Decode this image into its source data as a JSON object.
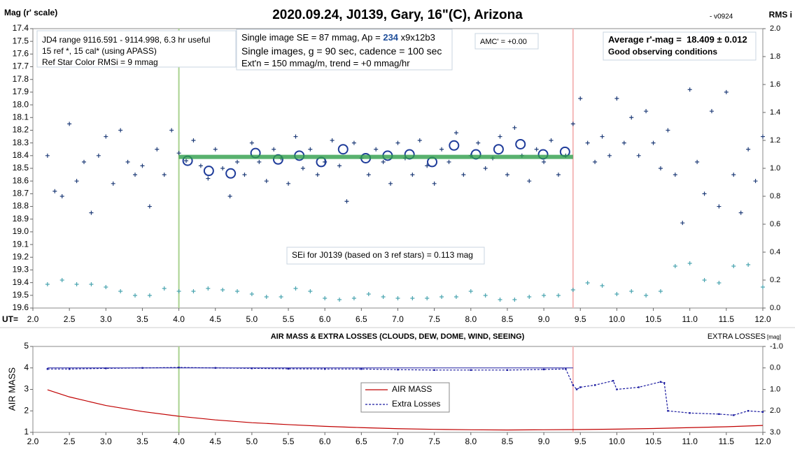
{
  "chart_data": [
    {
      "type": "scatter",
      "title": "2020.09.24, J0139, Gary, 16\"(C), Arizona",
      "subtitle": "- v0924",
      "y_label": "Mag (r' scale)",
      "y2_label": "RMS i",
      "x_label": "UT=",
      "xlim": [
        2.0,
        12.0
      ],
      "xticks": [
        {
          "value": 2,
          "label": "2.0"
        },
        2.5,
        {
          "value": 3,
          "label": "3.0"
        },
        3.5,
        {
          "value": 4,
          "label": "4.0"
        },
        4.5,
        {
          "value": 5,
          "label": "5.0"
        },
        5.5,
        {
          "value": 6,
          "label": "6.0"
        },
        6.5,
        {
          "value": 7,
          "label": "7.0"
        },
        7.5,
        {
          "value": 8,
          "label": "8.0"
        },
        8.5,
        {
          "value": 9,
          "label": "9.0"
        },
        9.5,
        {
          "value": 10,
          "label": "10.0"
        },
        10.5,
        {
          "value": 11,
          "label": "11.0"
        },
        11.5,
        {
          "value": 12,
          "label": "12.0"
        }
      ],
      "ylim": [
        17.4,
        19.6
      ],
      "y_inverted": true,
      "yticks": [
        17.4,
        17.5,
        17.6,
        17.7,
        17.8,
        17.9,
        {
          "value": 18,
          "label": "18.0"
        },
        18.1,
        18.2,
        18.3,
        18.4,
        18.5,
        18.6,
        18.7,
        18.8,
        18.9,
        {
          "value": 19,
          "label": "19.0"
        },
        19.1,
        19.2,
        19.3,
        19.4,
        19.5,
        19.6
      ],
      "y2lim": [
        0,
        2.0
      ],
      "y2ticks": [
        {
          "value": 0,
          "label": "0.0"
        },
        0.2,
        0.4,
        0.6,
        0.8,
        {
          "value": 1,
          "label": "1.0"
        },
        1.2,
        1.4,
        1.6,
        1.8,
        {
          "value": 2,
          "label": "2.0"
        }
      ],
      "grid": false,
      "vlines": [
        {
          "x": 4.0,
          "color": "#a9d18e"
        },
        {
          "x": 9.4,
          "color": "#f4b8b8"
        }
      ],
      "annotations": [
        {
          "lines": [
            [
              "JD4 range 9116.591 - 9114.998, 6.3 hr useful"
            ],
            [
              "15 ref *, 15 cal* (using APASS)"
            ],
            [
              "Ref Star Color RMSi = 9 mmag"
            ]
          ]
        },
        {
          "lines": [
            [
              "Single image SE = 87 mmag, Ap = ",
              "234",
              " x9x12b3"
            ],
            [
              "Single images, g = 90 sec, cadence = 100 sec"
            ],
            [
              "Ext'n = 150 mmag/m, trend = +0 mmag/hr"
            ]
          ]
        },
        {
          "lines": [
            [
              "AMC' = +0.00"
            ]
          ]
        },
        {
          "lines": [
            [
              "Average r'-mag =  18.409 ± 0.012"
            ],
            [
              "Good observing conditions"
            ]
          ]
        },
        {
          "lines": [
            [
              "SEi for J0139 (based on 3 ref stars) = 0.113 mag"
            ]
          ]
        }
      ],
      "series": [
        {
          "color": "#1f3c78",
          "marker": "plus",
          "x": [
            2.2,
            2.3,
            2.4,
            2.5,
            2.6,
            2.7,
            2.8,
            2.9,
            3.0,
            3.1,
            3.2,
            3.3,
            3.4,
            3.5,
            3.6,
            3.7,
            3.8,
            3.9,
            4.0,
            4.1,
            4.2,
            4.3,
            4.4,
            4.5,
            4.6,
            4.7,
            4.8,
            4.9,
            5.0,
            5.1,
            5.2,
            5.3,
            5.4,
            5.5,
            5.6,
            5.7,
            5.8,
            5.9,
            6.0,
            6.1,
            6.2,
            6.3,
            6.4,
            6.5,
            6.6,
            6.7,
            6.8,
            6.9,
            7.0,
            7.1,
            7.2,
            7.3,
            7.4,
            7.5,
            7.6,
            7.7,
            7.8,
            7.9,
            8.0,
            8.1,
            8.2,
            8.3,
            8.4,
            8.5,
            8.6,
            8.7,
            8.8,
            8.9,
            9.0,
            9.1,
            9.2,
            9.3,
            9.4,
            9.5,
            9.6,
            9.7,
            9.8,
            9.9,
            10.0,
            10.1,
            10.2,
            10.3,
            10.4,
            10.5,
            10.6,
            10.7,
            10.8,
            10.9,
            11.0,
            11.1,
            11.2,
            11.3,
            11.4,
            11.5,
            11.6,
            11.7,
            11.8,
            11.9,
            12.0
          ],
          "values": [
            18.4,
            18.68,
            18.72,
            18.15,
            18.6,
            18.45,
            18.85,
            18.4,
            18.25,
            18.62,
            18.2,
            18.45,
            18.55,
            18.48,
            18.8,
            18.35,
            18.55,
            18.2,
            18.38,
            18.44,
            18.28,
            18.48,
            18.58,
            18.35,
            18.5,
            18.72,
            18.45,
            18.55,
            18.3,
            18.45,
            18.6,
            18.35,
            18.42,
            18.62,
            18.25,
            18.5,
            18.35,
            18.55,
            18.45,
            18.28,
            18.48,
            18.76,
            18.3,
            18.42,
            18.55,
            18.35,
            18.45,
            18.62,
            18.3,
            18.42,
            18.55,
            18.28,
            18.48,
            18.62,
            18.35,
            18.45,
            18.22,
            18.55,
            18.4,
            18.3,
            18.5,
            18.42,
            18.25,
            18.55,
            18.18,
            18.4,
            18.6,
            18.35,
            18.45,
            18.28,
            18.55,
            18.4,
            18.15,
            17.95,
            18.3,
            18.45,
            18.25,
            18.4,
            17.95,
            18.3,
            18.1,
            18.4,
            18.05,
            18.3,
            18.5,
            18.2,
            18.55,
            18.93,
            17.88,
            18.45,
            18.7,
            18.05,
            18.8,
            17.9,
            18.55,
            18.85,
            18.35,
            18.6,
            18.25
          ]
        },
        {
          "color": "#1f3c9a",
          "marker": "circle",
          "x": [
            4.12,
            4.41,
            4.71,
            5.05,
            5.36,
            5.65,
            5.95,
            6.25,
            6.56,
            6.86,
            7.16,
            7.47,
            7.77,
            8.07,
            8.38,
            8.68,
            8.99,
            9.29
          ],
          "values": [
            18.44,
            18.52,
            18.54,
            18.38,
            18.43,
            18.4,
            18.45,
            18.35,
            18.42,
            18.4,
            18.39,
            18.45,
            18.32,
            18.39,
            18.35,
            18.31,
            18.39,
            18.37
          ]
        },
        {
          "color": "#2e9e4a",
          "marker": "line",
          "width": 6,
          "x": [
            4.0,
            9.4
          ],
          "values": [
            18.41,
            18.41
          ]
        },
        {
          "color": "#4aa5b0",
          "marker": "plus",
          "axis": "y2",
          "x": [
            2.2,
            2.4,
            2.6,
            2.8,
            3.0,
            3.2,
            3.4,
            3.6,
            3.8,
            4.0,
            4.2,
            4.4,
            4.6,
            4.8,
            5.0,
            5.2,
            5.4,
            5.6,
            5.8,
            6.0,
            6.2,
            6.4,
            6.6,
            6.8,
            7.0,
            7.2,
            7.4,
            7.6,
            7.8,
            8.0,
            8.2,
            8.4,
            8.6,
            8.8,
            9.0,
            9.2,
            9.4,
            9.6,
            9.8,
            10.0,
            10.2,
            10.4,
            10.6,
            10.8,
            11.0,
            11.2,
            11.4,
            11.6,
            11.8,
            12.0
          ],
          "values": [
            0.17,
            0.2,
            0.17,
            0.17,
            0.15,
            0.12,
            0.09,
            0.09,
            0.14,
            0.12,
            0.12,
            0.14,
            0.13,
            0.12,
            0.1,
            0.08,
            0.08,
            0.14,
            0.12,
            0.07,
            0.06,
            0.07,
            0.1,
            0.08,
            0.07,
            0.07,
            0.07,
            0.08,
            0.08,
            0.12,
            0.09,
            0.06,
            0.06,
            0.08,
            0.09,
            0.09,
            0.13,
            0.18,
            0.16,
            0.1,
            0.12,
            0.09,
            0.12,
            0.3,
            0.32,
            0.2,
            0.18,
            0.3,
            0.31,
            0.15
          ]
        }
      ]
    },
    {
      "type": "line",
      "title": "AIR MASS & EXTRA LOSSES (CLOUDS, DEW, DOME, WIND, SEEING)",
      "y_label": "AIR MASS",
      "y2_label": "EXTRA LOSSES",
      "y2_unit": "[mag]",
      "xlim": [
        2.0,
        12.0
      ],
      "xticks": [
        {
          "value": 2,
          "label": "2.0"
        },
        2.5,
        {
          "value": 3,
          "label": "3.0"
        },
        3.5,
        {
          "value": 4,
          "label": "4.0"
        },
        4.5,
        {
          "value": 5,
          "label": "5.0"
        },
        5.5,
        {
          "value": 6,
          "label": "6.0"
        },
        6.5,
        {
          "value": 7,
          "label": "7.0"
        },
        7.5,
        {
          "value": 8,
          "label": "8.0"
        },
        8.5,
        {
          "value": 9,
          "label": "9.0"
        },
        9.5,
        {
          "value": 10,
          "label": "10.0"
        },
        10.5,
        {
          "value": 11,
          "label": "11.0"
        },
        11.5,
        {
          "value": 12,
          "label": "12.0"
        }
      ],
      "ylim": [
        1,
        5
      ],
      "yticks": [
        1,
        2,
        3,
        4,
        5
      ],
      "y2lim": [
        -1.0,
        3.0
      ],
      "y2_inverted": true,
      "y2ticks": [
        {
          "value": -1,
          "label": "-1.0"
        },
        {
          "value": 0,
          "label": "0.0"
        },
        {
          "value": 1,
          "label": "1.0"
        },
        {
          "value": 2,
          "label": "2.0"
        },
        {
          "value": 3,
          "label": "3.0"
        }
      ],
      "grid": false,
      "legend": "center",
      "vlines": [
        {
          "x": 4.0,
          "color": "#a9d18e"
        },
        {
          "x": 9.4,
          "color": "#f4b8b8"
        }
      ],
      "hline": {
        "value": 0.0,
        "axis": "y2",
        "x": [
          2.2,
          9.4
        ],
        "color": "#2020a0"
      },
      "series": [
        {
          "name": "AIR MASS",
          "color": "#c00000",
          "marker": "line",
          "x": [
            2.2,
            2.5,
            3.0,
            3.5,
            4.0,
            4.5,
            5.0,
            5.5,
            6.0,
            6.5,
            7.0,
            7.5,
            8.0,
            8.5,
            9.0,
            9.5,
            10.0,
            10.5,
            11.0,
            11.5,
            12.0
          ],
          "values": [
            2.98,
            2.65,
            2.25,
            1.97,
            1.75,
            1.58,
            1.45,
            1.36,
            1.28,
            1.22,
            1.17,
            1.14,
            1.12,
            1.11,
            1.12,
            1.13,
            1.15,
            1.18,
            1.22,
            1.26,
            1.32
          ]
        },
        {
          "name": "Extra Losses",
          "color": "#1a1aa0",
          "marker": "dashdot",
          "axis": "y2",
          "x": [
            2.2,
            2.5,
            3.0,
            3.5,
            4.0,
            4.5,
            5.0,
            5.5,
            6.0,
            6.5,
            7.0,
            7.5,
            8.0,
            8.5,
            9.0,
            9.3,
            9.4,
            9.45,
            9.5,
            9.7,
            9.95,
            10.0,
            10.3,
            10.6,
            10.65,
            10.7,
            11.0,
            11.4,
            11.6,
            11.8,
            12.0
          ],
          "values": [
            0.05,
            0.05,
            0.02,
            0.0,
            -0.02,
            0.0,
            0.02,
            0.04,
            0.05,
            0.05,
            0.08,
            0.1,
            0.1,
            0.1,
            0.07,
            0.05,
            0.8,
            1.0,
            0.9,
            0.8,
            0.6,
            1.0,
            0.9,
            0.65,
            0.7,
            2.0,
            2.1,
            2.15,
            2.2,
            2.0,
            2.05
          ]
        }
      ]
    }
  ]
}
